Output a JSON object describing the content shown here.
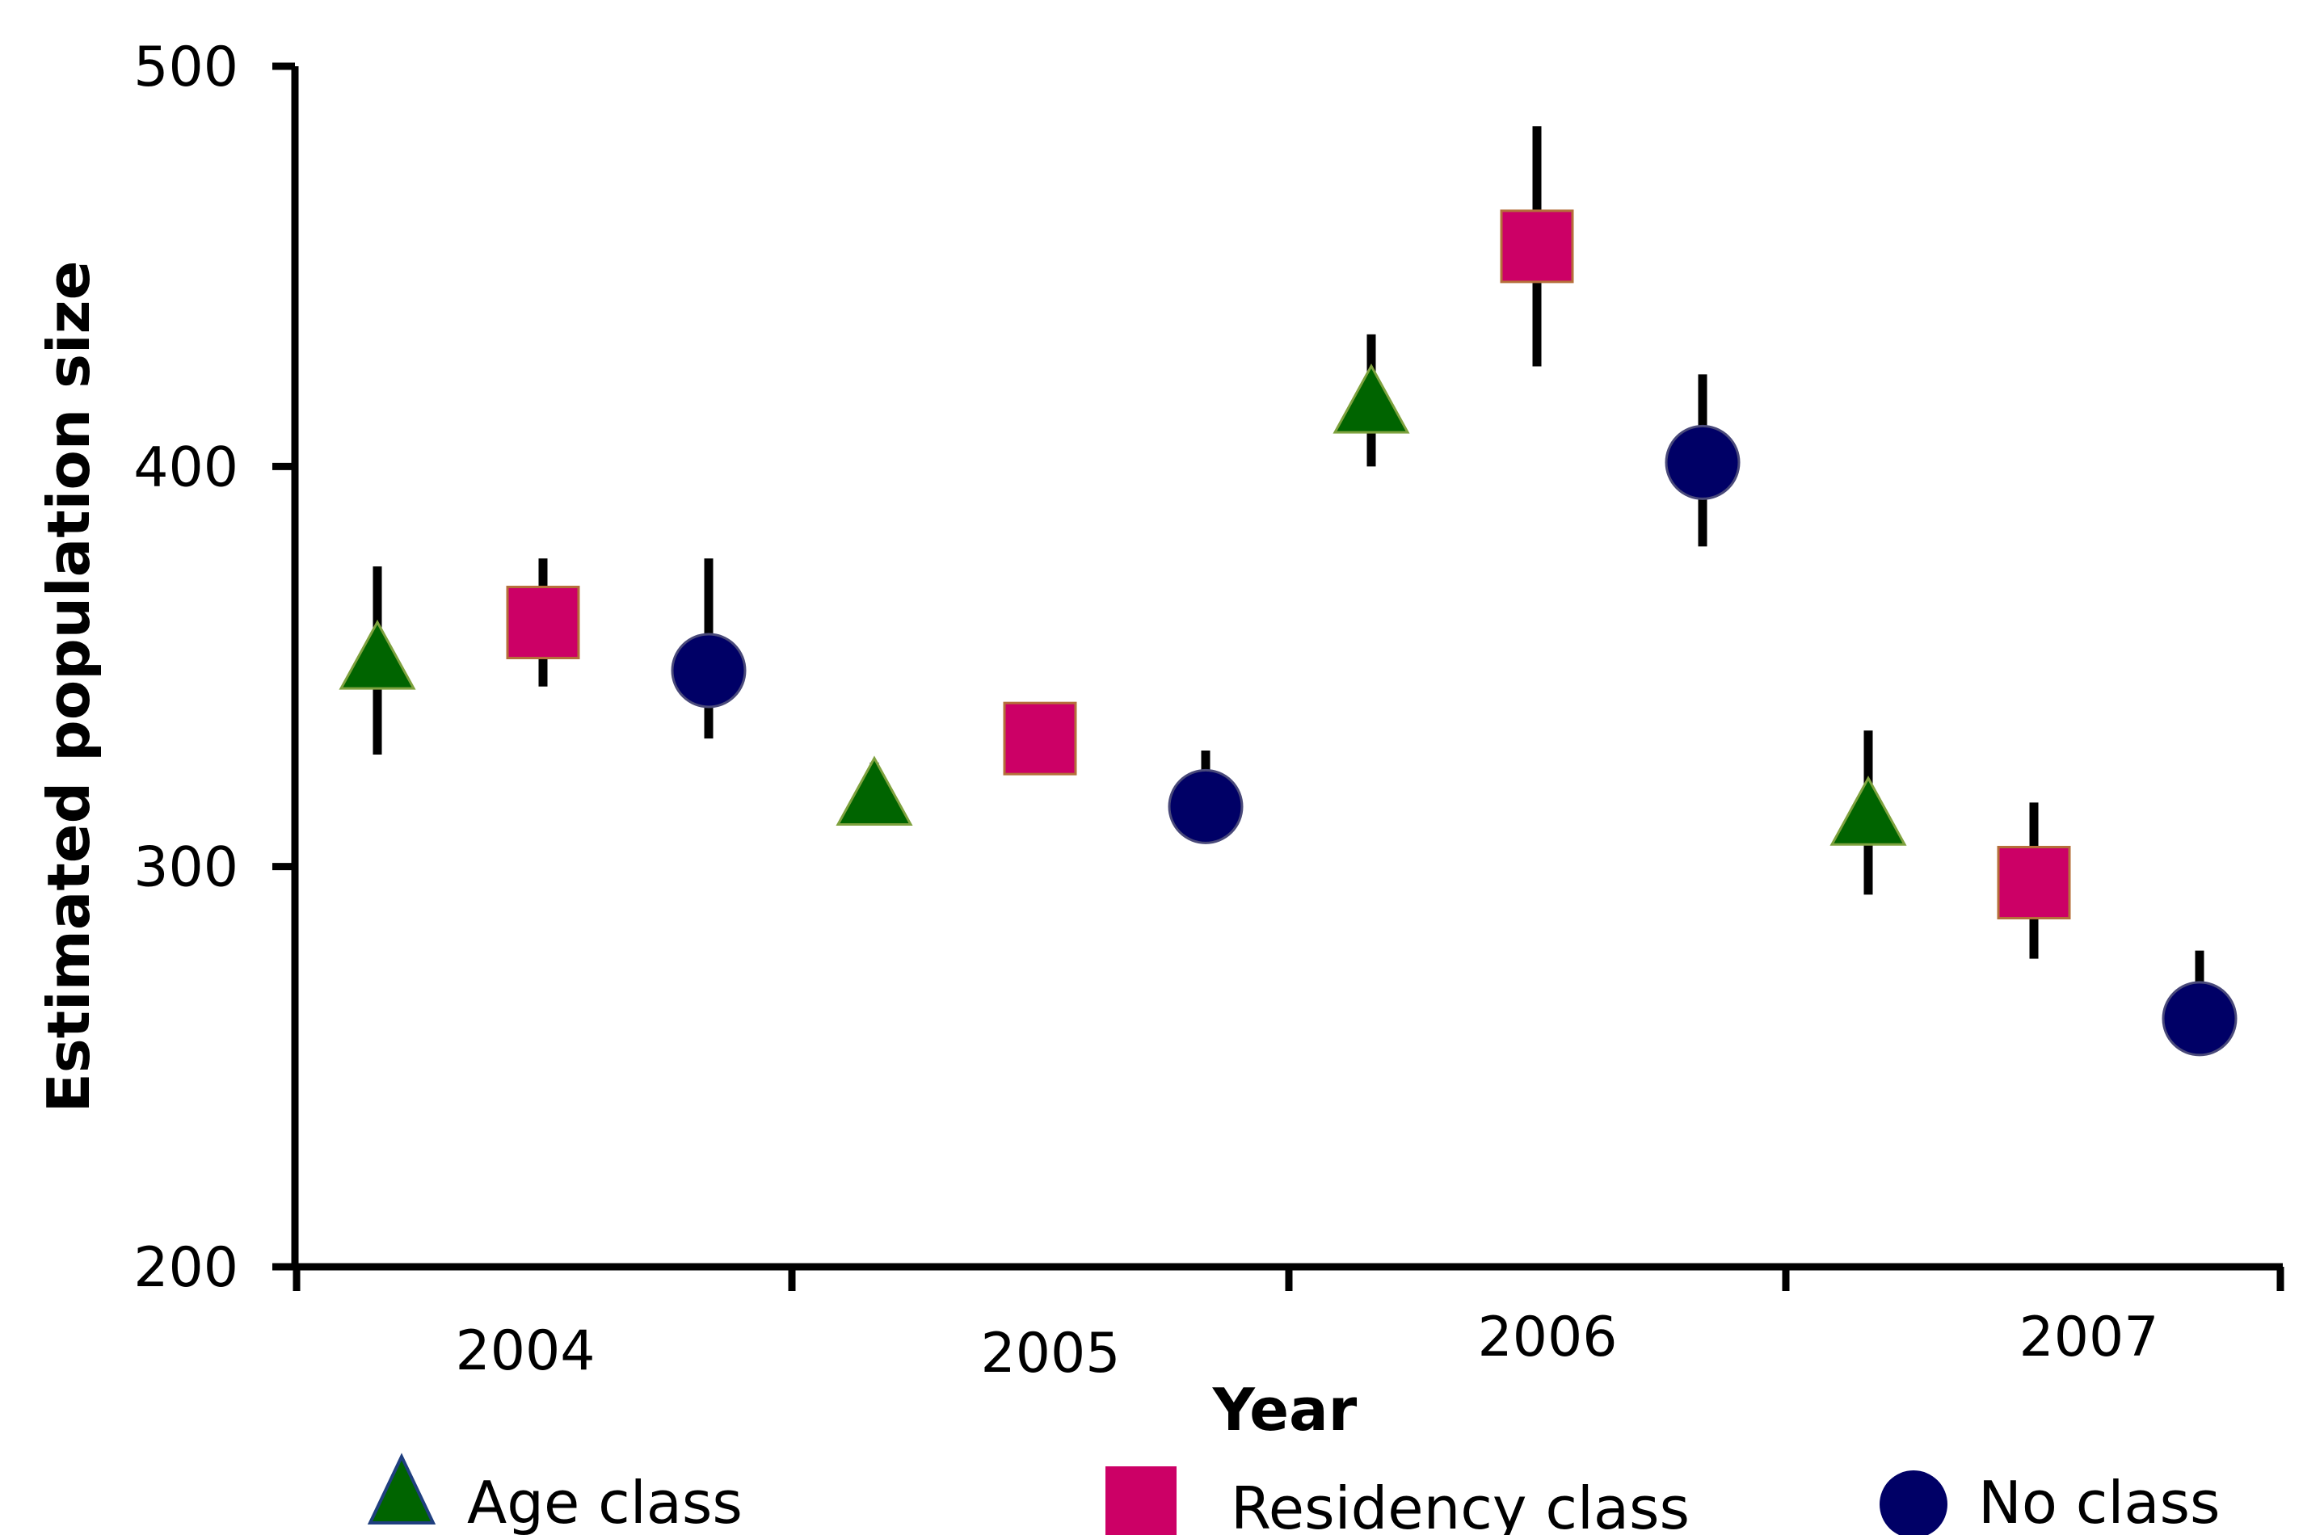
{
  "chart_data": {
    "type": "scatter",
    "xlabel": "Year",
    "ylabel": "Estimated population size",
    "ylim": [
      200,
      500
    ],
    "yticks": [
      "200",
      "300",
      "400",
      "500"
    ],
    "categories": [
      "2004",
      "2005",
      "2006",
      "2007"
    ],
    "grid": false,
    "error_bars": true,
    "legend_position": "bottom",
    "series": [
      {
        "name": "Age class",
        "marker": "triangle",
        "color": "#006400",
        "values": [
          352,
          318,
          416,
          313
        ],
        "lower": [
          328,
          316,
          400,
          293
        ],
        "upper": [
          375,
          326,
          433,
          334
        ]
      },
      {
        "name": "Residency class",
        "marker": "square",
        "color": "#CC0066",
        "values": [
          361,
          332,
          455,
          296
        ],
        "lower": [
          345,
          323,
          425,
          277
        ],
        "upper": [
          377,
          341,
          485,
          316
        ]
      },
      {
        "name": "No class",
        "marker": "circle",
        "color": "#000066",
        "values": [
          349,
          315,
          401,
          262
        ],
        "lower": [
          332,
          308,
          380,
          253
        ],
        "upper": [
          377,
          329,
          423,
          279
        ]
      }
    ]
  }
}
